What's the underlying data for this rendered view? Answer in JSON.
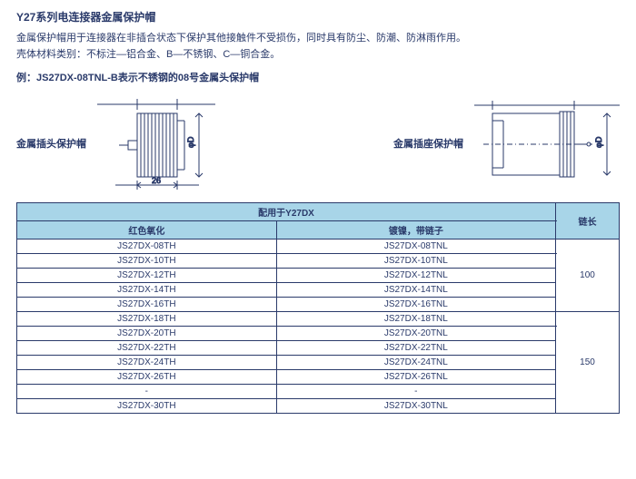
{
  "title": "Y27系列电连接器金属保护帽",
  "desc1": "金属保护帽用于连接器在非插合状态下保护其他接触件不受损伤，同时具有防尘、防潮、防淋雨作用。",
  "desc2": "壳体材料类别：不标注—铝合金、B—不锈钢、C—铜合金。",
  "example": "例：JS27DX-08TNL-B表示不锈钢的08号金属头保护帽",
  "diagram": {
    "left_label": "金属插头保护帽",
    "right_label": "金属插座保护帽",
    "dim_label": "26",
    "dia_label": "φD",
    "stroke": "#2a3a6a"
  },
  "table": {
    "header_top": "配用于Y27DX",
    "col_red": "红色氧化",
    "col_nickel": "镀镍，带链子",
    "col_chain": "链长",
    "groups": [
      {
        "chain": "100",
        "rows": [
          [
            "JS27DX-08TH",
            "JS27DX-08TNL"
          ],
          [
            "JS27DX-10TH",
            "JS27DX-10TNL"
          ],
          [
            "JS27DX-12TH",
            "JS27DX-12TNL"
          ],
          [
            "JS27DX-14TH",
            "JS27DX-14TNL"
          ],
          [
            "JS27DX-16TH",
            "JS27DX-16TNL"
          ]
        ]
      },
      {
        "chain": "150",
        "rows": [
          [
            "JS27DX-18TH",
            "JS27DX-18TNL"
          ],
          [
            "JS27DX-20TH",
            "JS27DX-20TNL"
          ],
          [
            "JS27DX-22TH",
            "JS27DX-22TNL"
          ],
          [
            "JS27DX-24TH",
            "JS27DX-24TNL"
          ],
          [
            "JS27DX-26TH",
            "JS27DX-26TNL"
          ],
          [
            "-",
            "-"
          ],
          [
            "JS27DX-30TH",
            "JS27DX-30TNL"
          ]
        ]
      }
    ]
  }
}
